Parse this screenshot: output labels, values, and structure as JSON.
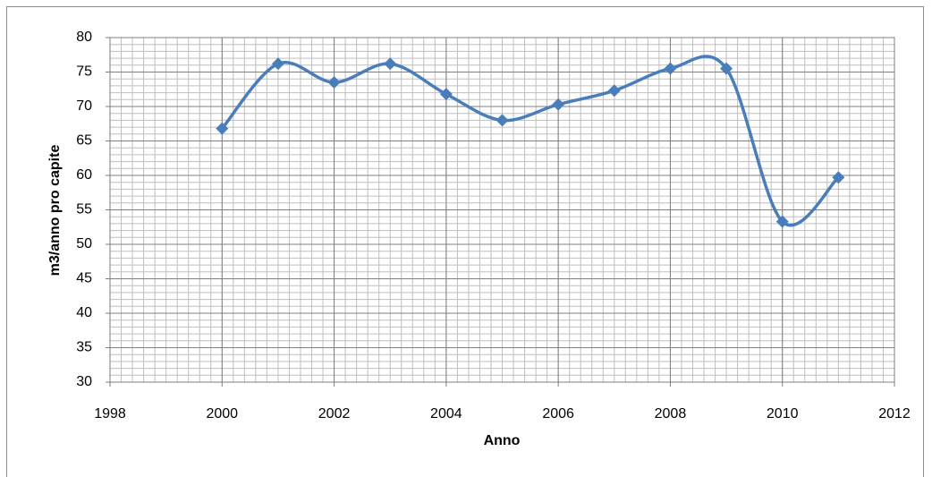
{
  "chart_data": {
    "type": "line",
    "x": [
      2000,
      2001,
      2002,
      2003,
      2004,
      2005,
      2006,
      2007,
      2008,
      2009,
      2010,
      2011
    ],
    "series": [
      {
        "color": "#4a7ebb",
        "values": [
          66.8,
          76.2,
          73.5,
          76.2,
          71.8,
          68.0,
          70.3,
          72.3,
          75.5,
          75.5,
          53.3,
          59.7
        ]
      }
    ],
    "xlabel": "Anno",
    "ylabel": "m3/anno pro capite",
    "xlim": [
      1998,
      2012
    ],
    "xticks": [
      1998,
      2000,
      2002,
      2004,
      2006,
      2008,
      2010,
      2012
    ],
    "ylim": [
      30,
      80
    ],
    "yticks": [
      30,
      35,
      40,
      45,
      50,
      55,
      60,
      65,
      70,
      75,
      80
    ],
    "grid": true,
    "xminor": 0.2,
    "yminor": 1,
    "smooth": true
  }
}
